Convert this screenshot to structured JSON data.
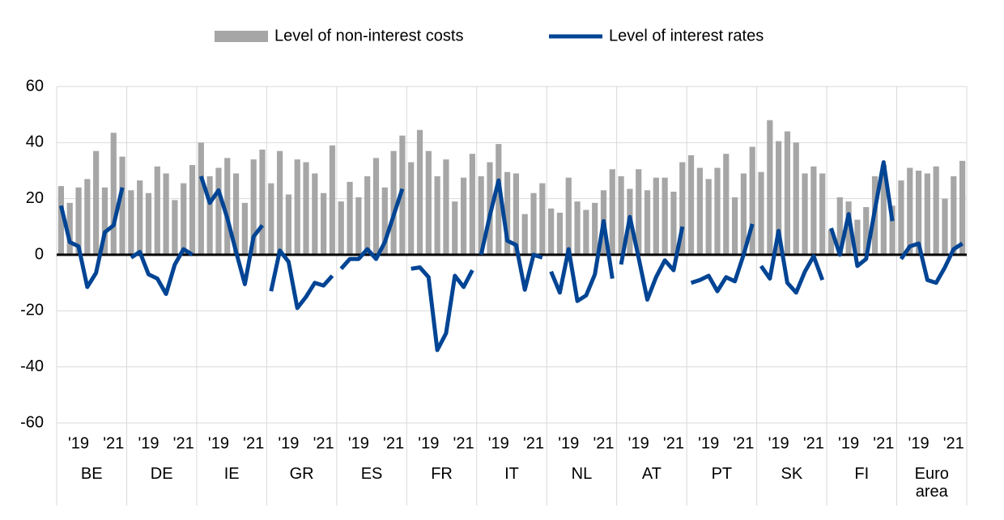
{
  "chart_data": {
    "type": "bar-line",
    "groups": [
      "BE",
      "DE",
      "IE",
      "GR",
      "ES",
      "FR",
      "IT",
      "NL",
      "AT",
      "PT",
      "SK",
      "FI",
      "Euro area"
    ],
    "categories": [
      null,
      null,
      "'19",
      null,
      null,
      null,
      "'21",
      null,
      null,
      null,
      "'19",
      null,
      null,
      null,
      "'21",
      null,
      null,
      null,
      "'19",
      null,
      null,
      null,
      "'21",
      null,
      null,
      null,
      "'19",
      null,
      null,
      null,
      "'21",
      null,
      null,
      null,
      "'19",
      null,
      null,
      null,
      "'21",
      null,
      null,
      null,
      "'19",
      null,
      null,
      null,
      "'21",
      null,
      null,
      null,
      "'19",
      null,
      null,
      null,
      "'21",
      null,
      null,
      null,
      "'19",
      null,
      null,
      null,
      "'21",
      null,
      null,
      null,
      "'19",
      null,
      null,
      null,
      "'21",
      null,
      null,
      null,
      "'19",
      null,
      null,
      null,
      "'21",
      null,
      null,
      null,
      "'19",
      null,
      null,
      null,
      "'21",
      null,
      null,
      null,
      "'19",
      null,
      null,
      null,
      "'21",
      null,
      null,
      null,
      "'19",
      null,
      null,
      null,
      "'21",
      null
    ],
    "series": [
      {
        "name": "Level of non-interest costs",
        "type": "bar",
        "color": "#a6a6a6",
        "values": [
          24.5,
          18.5,
          24,
          27,
          37,
          24,
          43.5,
          35,
          23,
          26.5,
          22,
          31.5,
          29,
          19.5,
          25.5,
          32,
          40,
          28,
          31,
          34.5,
          29,
          18.5,
          34,
          37.5,
          25.5,
          37,
          21.5,
          34,
          33,
          29,
          22,
          39,
          19,
          26,
          20.5,
          28,
          34.5,
          24,
          37,
          42.5,
          33,
          44.5,
          37,
          28,
          34,
          19,
          27.5,
          36,
          28,
          33,
          39.5,
          29.5,
          29,
          14.5,
          22,
          25.5,
          16.5,
          15,
          27.5,
          19,
          16,
          18.5,
          23,
          30.5,
          28,
          23.5,
          30.5,
          23,
          27.5,
          27.5,
          22.5,
          33,
          35.5,
          31,
          27,
          31,
          36,
          20.5,
          29,
          38.5,
          29.5,
          48,
          40.5,
          44,
          40,
          29,
          31.5,
          29,
          9,
          20.5,
          19,
          12.5,
          17,
          28,
          32,
          17.5,
          26.5,
          31,
          30,
          29,
          31.5,
          20,
          28,
          33.5
        ]
      },
      {
        "name": "Level of interest rates",
        "type": "line",
        "color": "#004494",
        "values": [
          17.5,
          4.5,
          3,
          -11.5,
          -6.5,
          8,
          10.5,
          24,
          -1,
          1,
          -7,
          -8.5,
          -14,
          -3.5,
          2,
          0,
          28,
          18.5,
          23,
          13,
          1,
          -10.5,
          6.5,
          10.5,
          -13,
          1.5,
          -2.5,
          -19,
          -15,
          -10,
          -11,
          -7.5,
          -5,
          -1.5,
          -1.5,
          2,
          -1.5,
          4.5,
          14,
          23.5,
          -5,
          -4.5,
          -8,
          -34,
          -28,
          -7.5,
          -11.5,
          -5.5,
          0,
          14,
          26.5,
          5,
          3.5,
          -12.5,
          0,
          -1,
          -6,
          -13.5,
          2,
          -16.5,
          -14.5,
          -7,
          12,
          -8.5,
          -3.5,
          13.5,
          -1,
          -16,
          -8,
          -2,
          -5.5,
          10,
          -10,
          -9,
          -7.5,
          -13,
          -8,
          -9.5,
          0,
          11,
          -4,
          -8.5,
          8.5,
          -10,
          -13.5,
          -6,
          -0.5,
          -9,
          9.5,
          0,
          14.5,
          -4,
          -1.5,
          16,
          33,
          12,
          -1.5,
          3,
          4,
          -9,
          -10,
          -4.5,
          2,
          4
        ]
      }
    ],
    "ylim": [
      -60,
      60
    ],
    "yticks": [
      -60,
      -40,
      -20,
      0,
      20,
      40,
      60
    ],
    "grid": true
  }
}
